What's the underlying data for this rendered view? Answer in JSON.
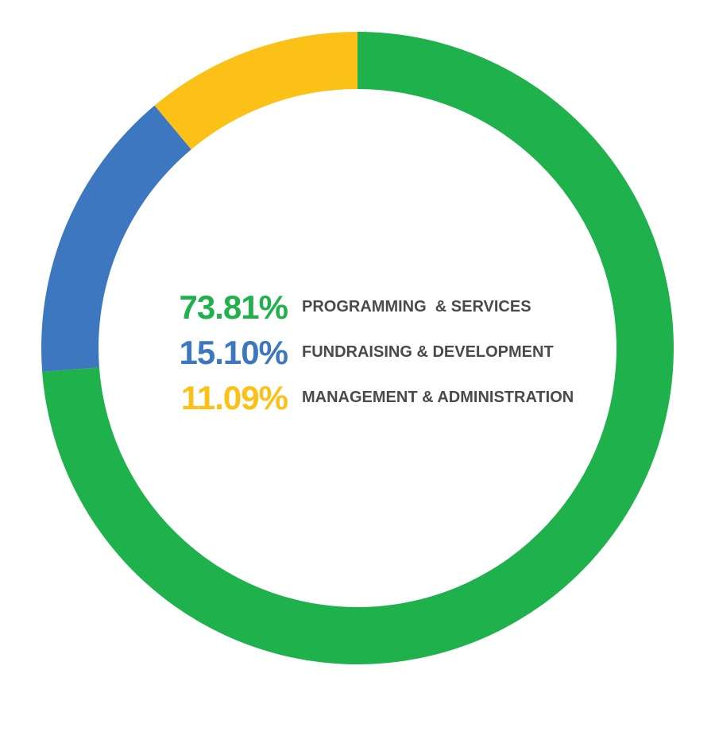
{
  "chart_data": {
    "type": "pie",
    "variant": "donut",
    "series": [
      {
        "name": "PROGRAMMING  & SERVICES",
        "value_label": "73.81%",
        "value": 73.81,
        "color": "#1fb14c"
      },
      {
        "name": "FUNDRAISING & DEVELOPMENT",
        "value_label": "15.10%",
        "value": 15.1,
        "color": "#3c77bf"
      },
      {
        "name": "MANAGEMENT & ADMINISTRATION",
        "value_label": "11.09%",
        "value": 11.09,
        "color": "#fcc117"
      }
    ],
    "legend_placement": "center"
  }
}
